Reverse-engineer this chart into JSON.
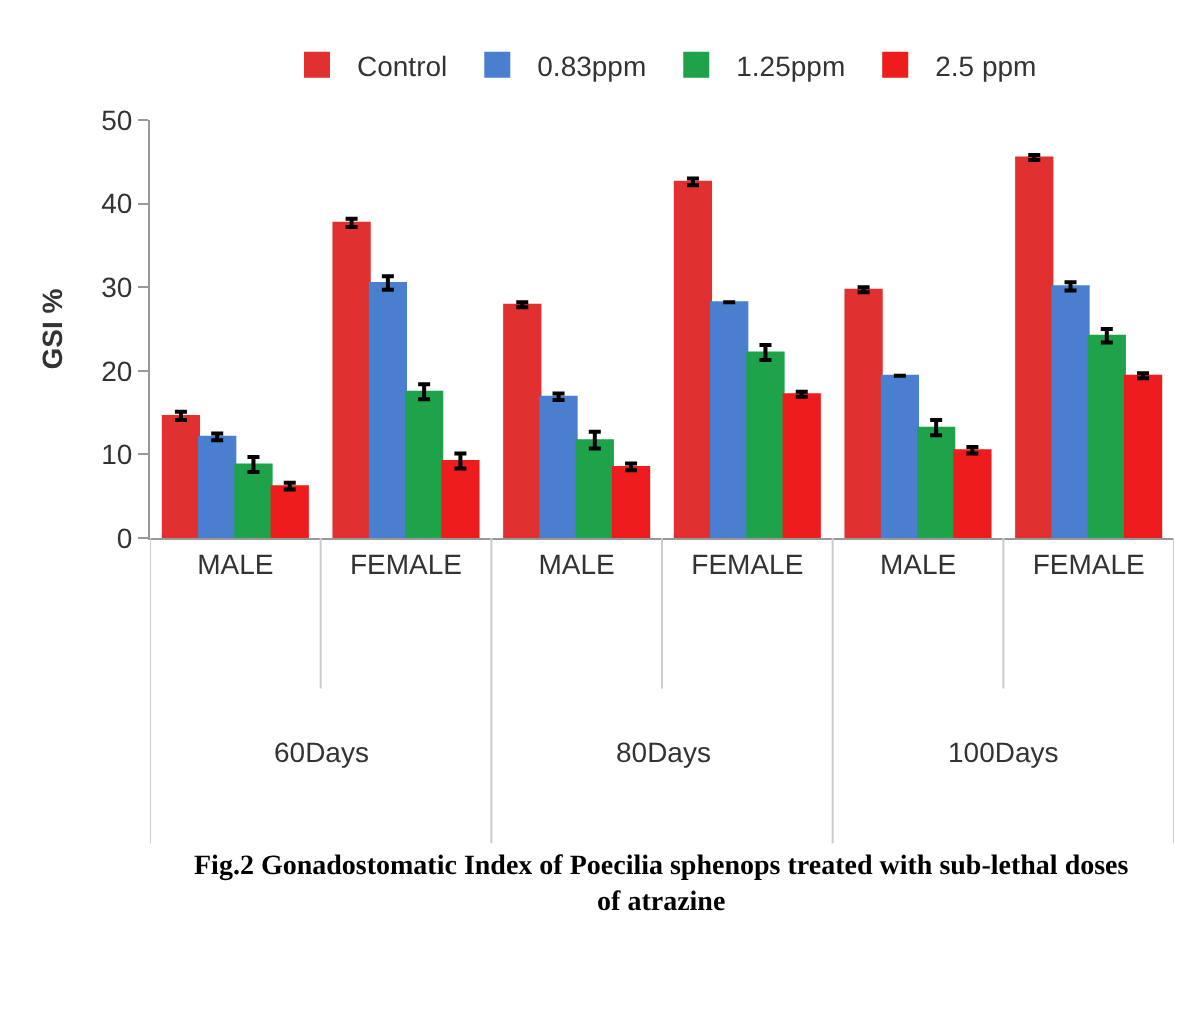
{
  "chart_data": {
    "type": "bar",
    "title": "Fig.2 Gonadostomatic Index of Poecilia sphenops treated with sub-lethal doses of atrazine",
    "ylabel": "GSI %",
    "categories": [
      "MALE",
      "FEMALE",
      "MALE",
      "FEMALE",
      "MALE",
      "FEMALE"
    ],
    "annotations": [
      "60Days",
      "80Days",
      "100Days"
    ],
    "series": [
      {
        "name": "Control",
        "color": "#e03030",
        "values": [
          14.6,
          37.7,
          27.9,
          42.6,
          29.7,
          45.5
        ],
        "errors": [
          0.5,
          0.5,
          0.3,
          0.4,
          0.3,
          0.3
        ]
      },
      {
        "name": "0.83ppm",
        "color": "#4a7fcf",
        "values": [
          12.1,
          30.5,
          16.9,
          28.2,
          19.4,
          30.1
        ],
        "errors": [
          0.4,
          0.8,
          0.4,
          null,
          null,
          0.5
        ]
      },
      {
        "name": "1.25ppm",
        "color": "#1ea34a",
        "values": [
          8.8,
          17.5,
          11.7,
          22.2,
          13.2,
          24.2
        ],
        "errors": [
          0.9,
          0.9,
          1.0,
          0.9,
          0.9,
          0.8
        ]
      },
      {
        "name": "2.5 ppm",
        "color": "#ee1c1c",
        "values": [
          6.2,
          9.2,
          8.5,
          17.2,
          10.5,
          19.4
        ],
        "errors": [
          0.4,
          0.9,
          0.4,
          0.3,
          0.4,
          0.3
        ]
      }
    ],
    "ylim": [
      0,
      50
    ],
    "yticks": [
      0,
      10,
      20,
      30,
      40,
      50
    ],
    "grid": false,
    "legend": "top"
  }
}
